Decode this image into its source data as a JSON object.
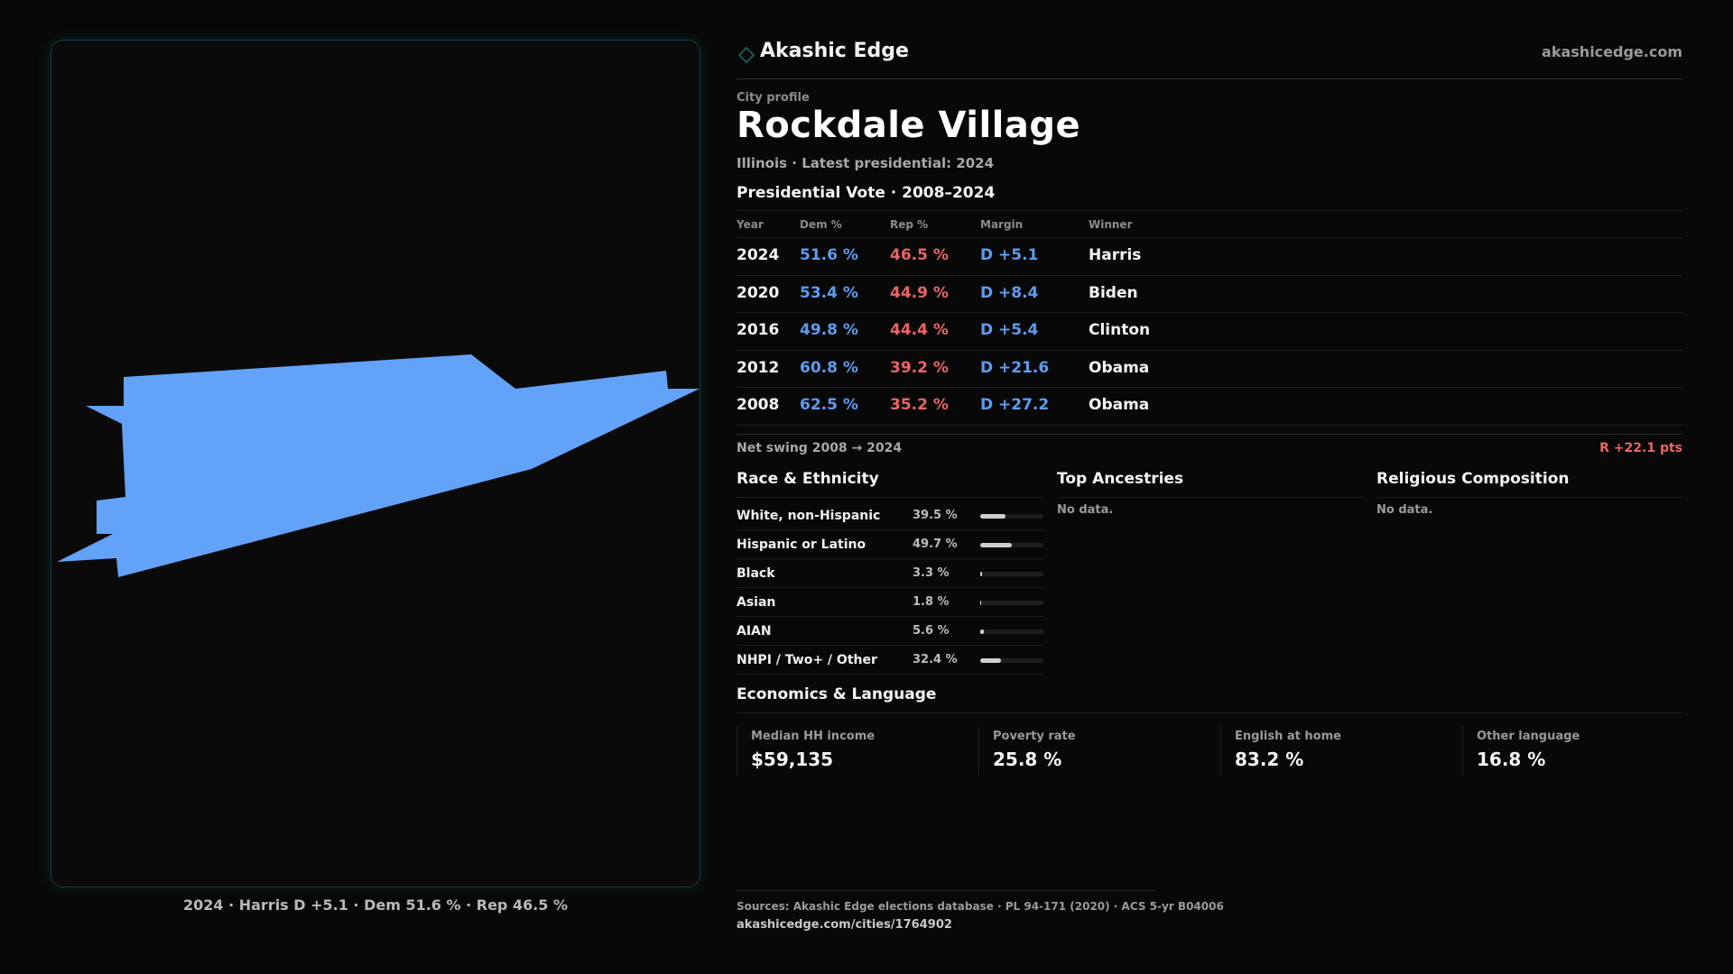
{
  "map": {
    "caption": "2024 · Harris D +5.1 · Dem 51.6 % · Rep 46.5 %",
    "fill_color": "#62a2f8"
  },
  "header": {
    "brand": "Akashic Edge",
    "site": "akashicedge.com",
    "logo_icon": "diamond-outline"
  },
  "profile": {
    "kicker": "City profile",
    "name": "Rockdale Village",
    "subline": "Illinois · Latest presidential: 2024"
  },
  "vote": {
    "title": "Presidential Vote · 2008–2024",
    "headers": {
      "year": "Year",
      "dem": "Dem %",
      "rep": "Rep %",
      "margin": "Margin",
      "winner": "Winner"
    },
    "rows": [
      {
        "year": "2024",
        "dem": "51.6 %",
        "rep": "46.5 %",
        "margin": "D +5.1",
        "winner": "Harris"
      },
      {
        "year": "2020",
        "dem": "53.4 %",
        "rep": "44.9 %",
        "margin": "D +8.4",
        "winner": "Biden"
      },
      {
        "year": "2016",
        "dem": "49.8 %",
        "rep": "44.4 %",
        "margin": "D +5.4",
        "winner": "Clinton"
      },
      {
        "year": "2012",
        "dem": "60.8 %",
        "rep": "39.2 %",
        "margin": "D +21.6",
        "winner": "Obama"
      },
      {
        "year": "2008",
        "dem": "62.5 %",
        "rep": "35.2 %",
        "margin": "D +27.2",
        "winner": "Obama"
      }
    ],
    "swing_label": "Net swing 2008 → 2024",
    "swing_value": "R +22.1 pts"
  },
  "race": {
    "title": "Race & Ethnicity",
    "rows": [
      {
        "name": "White, non-Hispanic",
        "pct": "39.5 %",
        "value": 39.5
      },
      {
        "name": "Hispanic or Latino",
        "pct": "49.7 %",
        "value": 49.7
      },
      {
        "name": "Black",
        "pct": "3.3 %",
        "value": 3.3
      },
      {
        "name": "Asian",
        "pct": "1.8 %",
        "value": 1.8
      },
      {
        "name": "AIAN",
        "pct": "5.6 %",
        "value": 5.6
      },
      {
        "name": "NHPI / Two+ / Other",
        "pct": "32.4 %",
        "value": 32.4
      }
    ]
  },
  "ancestries": {
    "title": "Top Ancestries",
    "empty": "No data."
  },
  "religion": {
    "title": "Religious Composition",
    "empty": "No data."
  },
  "economics": {
    "title": "Economics & Language",
    "cards": [
      {
        "label": "Median HH income",
        "value": "$59,135"
      },
      {
        "label": "Poverty rate",
        "value": "25.8 %"
      },
      {
        "label": "English at home",
        "value": "83.2 %"
      },
      {
        "label": "Other language",
        "value": "16.8 %"
      }
    ]
  },
  "footer": {
    "sources": "Sources: Akashic Edge elections database · PL 94-171 (2020) · ACS 5-yr B04006",
    "url": "akashicedge.com/cities/1764902"
  }
}
